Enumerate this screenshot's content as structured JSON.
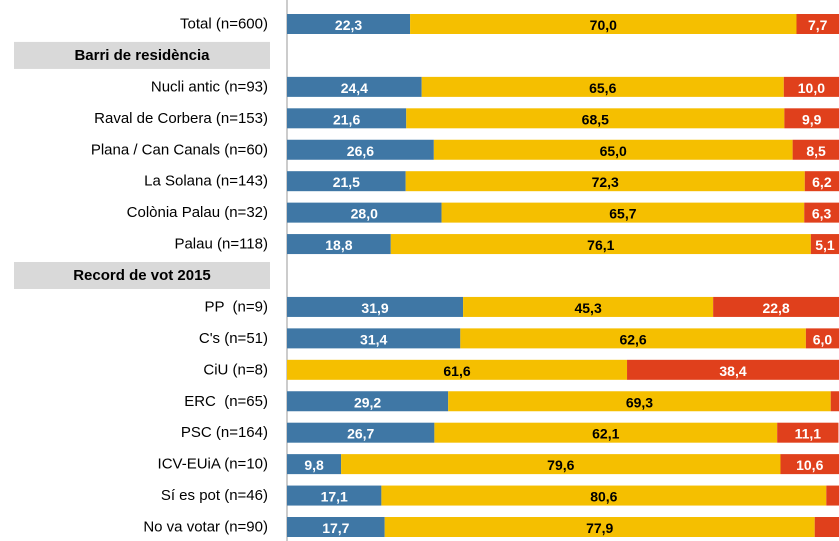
{
  "chart_data": {
    "type": "stacked-bar-horizontal",
    "categories": [
      "Total (n=600)",
      "Barri de residència",
      "Nucli antic (n=93)",
      "Raval de Corbera (n=153)",
      "Plana / Can Canals (n=60)",
      "La Solana (n=143)",
      "Colònia Palau (n=32)",
      "Palau (n=118)",
      "Record de vot 2015",
      "PP  (n=9)",
      "C's (n=51)",
      "CiU (n=8)",
      "ERC  (n=65)",
      "PSC (n=164)",
      "ICV-EUiA (n=10)",
      "Sí es pot (n=46)",
      "No va votar (n=90)"
    ],
    "xlim": [
      0,
      100
    ],
    "series": [
      {
        "color": "#3f77a5",
        "text_color": "#ffffff",
        "values": [
          22.3,
          null,
          24.4,
          21.6,
          26.6,
          21.5,
          28.0,
          18.8,
          null,
          31.9,
          31.4,
          0,
          29.2,
          26.7,
          9.8,
          17.1,
          17.7
        ],
        "value_labels": [
          "22,3",
          null,
          "24,4",
          "21,6",
          "26,6",
          "21,5",
          "28,0",
          "18,8",
          null,
          "31,9",
          "31,4",
          null,
          "29,2",
          "26,7",
          "9,8",
          "17,1",
          "17,7"
        ]
      },
      {
        "color": "#f5bf00",
        "text_color": "#000000",
        "values": [
          70.0,
          null,
          65.6,
          68.5,
          65.0,
          72.3,
          65.7,
          76.1,
          null,
          45.3,
          62.6,
          61.6,
          69.3,
          62.1,
          79.6,
          80.6,
          77.9
        ],
        "value_labels": [
          "70,0",
          null,
          "65,6",
          "68,5",
          "65,0",
          "72,3",
          "65,7",
          "76,1",
          null,
          "45,3",
          "62,6",
          "61,6",
          "69,3",
          "62,1",
          "79,6",
          "80,6",
          "77,9"
        ]
      },
      {
        "color": "#e0401c",
        "text_color": "#ffffff",
        "values": [
          7.7,
          null,
          10.0,
          9.9,
          8.5,
          6.2,
          6.3,
          5.1,
          null,
          22.8,
          6.0,
          38.4,
          1.5,
          11.1,
          10.6,
          2.3,
          4.4
        ],
        "value_labels": [
          "7,7",
          null,
          "10,0",
          "9,9",
          "8,5",
          "6,2",
          "6,3",
          "5,1",
          null,
          "22,8",
          "6,0",
          "38,4",
          null,
          "11,1",
          "10,6",
          null,
          null
        ]
      }
    ]
  }
}
